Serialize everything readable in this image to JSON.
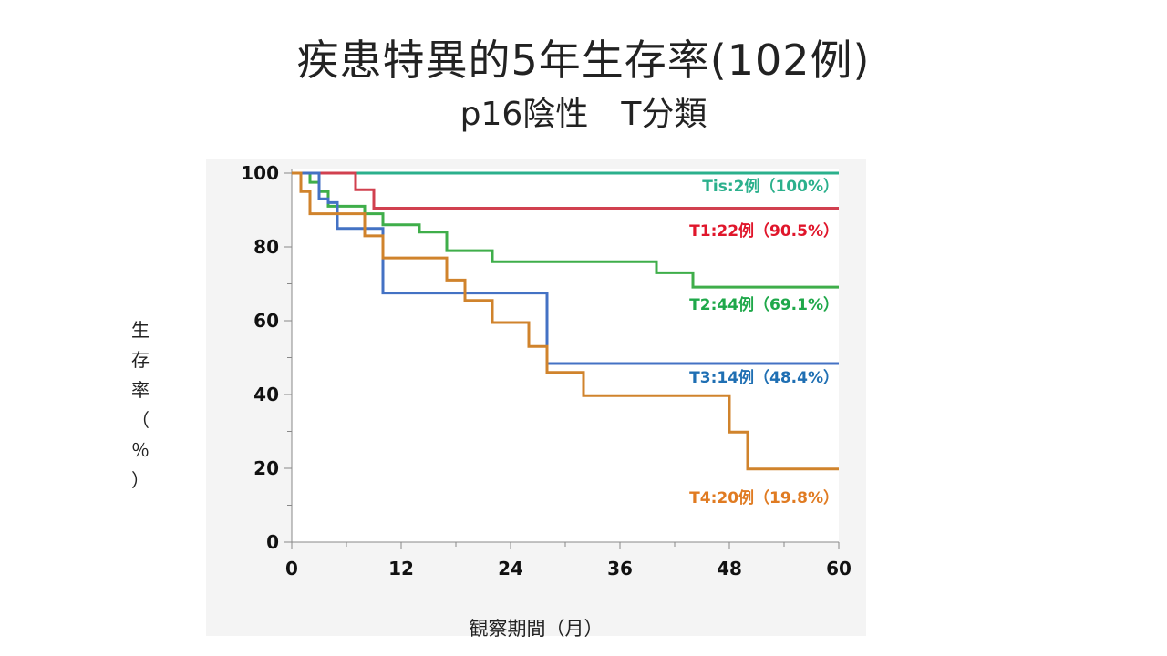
{
  "slide": {
    "title": "疾患特異的5年生存率(102例)",
    "subtitle": "p16陰性　T分類"
  },
  "chart_data": {
    "type": "line",
    "subtype": "kaplan-meier step",
    "xlabel": "観察期間（月）",
    "ylabel": "生\n存\n率\n（\n％\n）",
    "xlim": [
      0,
      60
    ],
    "ylim": [
      0,
      100
    ],
    "xticks": [
      0,
      12,
      24,
      36,
      48,
      60
    ],
    "yticks": [
      0,
      20,
      40,
      60,
      80,
      100
    ],
    "grid": false,
    "series": [
      {
        "name": "Tis:2例（100%）",
        "color": "#2bb08c",
        "x": [
          0,
          60
        ],
        "y": [
          100,
          100
        ]
      },
      {
        "name": "T1:22例（90.5%）",
        "color": "#d1404f",
        "x": [
          0,
          7,
          7,
          9,
          9,
          60
        ],
        "y": [
          100,
          100,
          95.5,
          95.5,
          90.5,
          90.5
        ]
      },
      {
        "name": "T2:44例（69.1%）",
        "color": "#3fae4a",
        "x": [
          0,
          2,
          2,
          3,
          3,
          4,
          4,
          8,
          8,
          10,
          10,
          14,
          14,
          17,
          17,
          22,
          22,
          40,
          40,
          44,
          44,
          60
        ],
        "y": [
          100,
          100,
          97.5,
          97.5,
          95,
          95,
          91,
          91,
          89,
          89,
          86,
          86,
          84,
          84,
          79,
          79,
          76,
          76,
          73,
          73,
          69.1,
          69.1
        ]
      },
      {
        "name": "T3:14例（48.4%）",
        "color": "#4472c4",
        "x": [
          0,
          3,
          3,
          4,
          4,
          5,
          5,
          10,
          10,
          28,
          28,
          60
        ],
        "y": [
          100,
          100,
          93,
          93,
          92,
          92,
          85,
          85,
          67.5,
          67.5,
          48.4,
          48.4
        ]
      },
      {
        "name": "T4:20例（19.8%）",
        "color": "#d0832c",
        "x": [
          0,
          1,
          1,
          2,
          2,
          4,
          4,
          8,
          8,
          10,
          10,
          17,
          17,
          19,
          19,
          22,
          22,
          26,
          26,
          28,
          28,
          32,
          32,
          48,
          48,
          50,
          50,
          60
        ],
        "y": [
          100,
          100,
          95,
          95,
          89,
          89,
          89,
          89,
          83,
          83,
          77,
          77,
          71,
          71,
          65.5,
          65.5,
          59.5,
          59.5,
          53,
          53,
          46,
          46,
          39.7,
          39.7,
          29.8,
          29.8,
          19.8,
          19.8
        ]
      }
    ],
    "annotations": [
      {
        "text": "Tis:2例（100%）",
        "color": "#2bb08c"
      },
      {
        "text": "T1:22例（90.5%）",
        "color": "#e0162b"
      },
      {
        "text": "T2:44例（69.1%）",
        "color": "#1fa84a"
      },
      {
        "text": "T3:14例（48.4%）",
        "color": "#1f6fb3"
      },
      {
        "text": "T4:20例（19.8%）",
        "color": "#e07b22"
      }
    ]
  }
}
